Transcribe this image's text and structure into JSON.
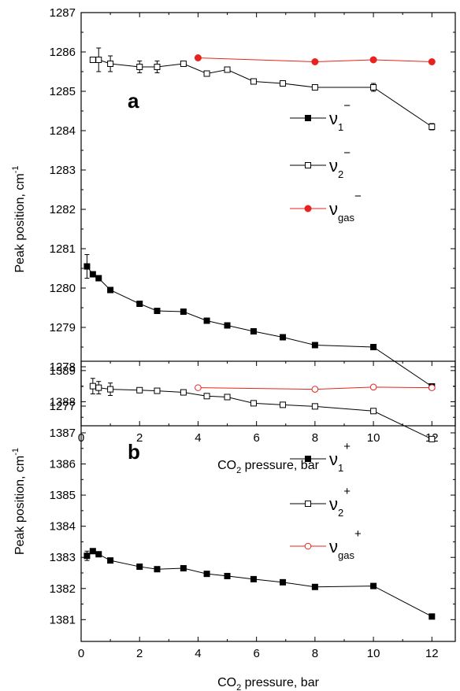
{
  "chart_data": [
    {
      "type": "line",
      "panel_label": "a",
      "xlabel": "CO2 pressure, bar",
      "ylabel": "Peak position, cm-1",
      "xlim": [
        0,
        12.8
      ],
      "ylim": [
        1276.5,
        1287
      ],
      "xticks": [
        0,
        2,
        4,
        6,
        8,
        10,
        12
      ],
      "yticks": [
        1277,
        1278,
        1279,
        1280,
        1281,
        1282,
        1283,
        1284,
        1285,
        1286,
        1287
      ],
      "legend_position": "center-right",
      "series": [
        {
          "name": "ν1−",
          "legend": {
            "base": "ν",
            "sub": "1",
            "sup": "−"
          },
          "marker": "filled-square",
          "color": "#000000",
          "x": [
            0.2,
            0.4,
            0.6,
            1.0,
            2.0,
            2.6,
            3.5,
            4.3,
            5.0,
            5.9,
            6.9,
            8.0,
            10.0,
            12.0
          ],
          "y": [
            1280.55,
            1280.35,
            1280.25,
            1279.95,
            1279.6,
            1279.42,
            1279.4,
            1279.17,
            1279.05,
            1278.9,
            1278.75,
            1278.55,
            1278.5,
            1277.5
          ],
          "errors": [
            0.3,
            0,
            0,
            0,
            0,
            0,
            0,
            0,
            0,
            0,
            0,
            0,
            0,
            0
          ]
        },
        {
          "name": "ν2−",
          "legend": {
            "base": "ν",
            "sub": "2",
            "sup": "−"
          },
          "marker": "open-square",
          "color": "#000000",
          "x": [
            0.4,
            0.6,
            1.0,
            2.0,
            2.6,
            3.5,
            4.3,
            5.0,
            5.9,
            6.9,
            8.0,
            10.0,
            12.0
          ],
          "y": [
            1285.8,
            1285.8,
            1285.7,
            1285.62,
            1285.62,
            1285.7,
            1285.45,
            1285.55,
            1285.25,
            1285.2,
            1285.1,
            1285.1,
            1284.1
          ],
          "errors": [
            0,
            0.3,
            0.2,
            0.15,
            0.15,
            0,
            0,
            0,
            0,
            0,
            0,
            0.1,
            0.08
          ]
        },
        {
          "name": "νgas−",
          "legend": {
            "base": "ν",
            "sub": "gas",
            "sup": "−"
          },
          "marker": "filled-circle",
          "color": "#e8231f",
          "x": [
            4.0,
            8.0,
            10.0,
            12.0
          ],
          "y": [
            1285.85,
            1285.75,
            1285.8,
            1285.75
          ],
          "errors": [
            0,
            0,
            0,
            0
          ]
        }
      ]
    },
    {
      "type": "line",
      "panel_label": "b",
      "xlabel": "CO2 pressure, bar",
      "ylabel": "Peak position, cm-1",
      "xlim": [
        0,
        12.8
      ],
      "ylim": [
        1380.3,
        1389.3
      ],
      "xticks": [
        0,
        2,
        4,
        6,
        8,
        10,
        12
      ],
      "yticks": [
        1381,
        1382,
        1383,
        1384,
        1385,
        1386,
        1387,
        1388,
        1389
      ],
      "legend_position": "center-right",
      "series": [
        {
          "name": "ν1+",
          "legend": {
            "base": "ν",
            "sub": "1",
            "sup": "+"
          },
          "marker": "filled-square",
          "color": "#000000",
          "x": [
            0.2,
            0.4,
            0.6,
            1.0,
            2.0,
            2.6,
            3.5,
            4.3,
            5.0,
            5.9,
            6.9,
            8.0,
            10.0,
            12.0
          ],
          "y": [
            1383.05,
            1383.2,
            1383.1,
            1382.9,
            1382.7,
            1382.62,
            1382.65,
            1382.47,
            1382.4,
            1382.3,
            1382.2,
            1382.05,
            1382.08,
            1381.1
          ],
          "errors": [
            0.15,
            0,
            0,
            0,
            0,
            0,
            0,
            0,
            0,
            0,
            0,
            0,
            0,
            0
          ]
        },
        {
          "name": "ν2+",
          "legend": {
            "base": "ν",
            "sub": "2",
            "sup": "+"
          },
          "marker": "open-square",
          "color": "#000000",
          "x": [
            0.4,
            0.6,
            1.0,
            2.0,
            2.6,
            3.5,
            4.3,
            5.0,
            5.9,
            6.9,
            8.0,
            10.0,
            12.0
          ],
          "y": [
            1388.5,
            1388.45,
            1388.4,
            1388.37,
            1388.35,
            1388.3,
            1388.18,
            1388.15,
            1387.95,
            1387.9,
            1387.85,
            1387.7,
            1386.8
          ],
          "errors": [
            0.25,
            0.2,
            0.2,
            0,
            0,
            0,
            0,
            0,
            0,
            0,
            0,
            0,
            0
          ]
        },
        {
          "name": "νgas+",
          "legend": {
            "base": "ν",
            "sub": "gas",
            "sup": "+"
          },
          "marker": "open-circle",
          "color": "#e8231f",
          "x": [
            4.0,
            8.0,
            10.0,
            12.0
          ],
          "y": [
            1388.45,
            1388.4,
            1388.47,
            1388.45
          ],
          "errors": [
            0,
            0,
            0,
            0
          ]
        }
      ]
    }
  ]
}
